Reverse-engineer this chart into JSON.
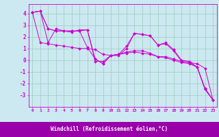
{
  "bg_color": "#cce8f0",
  "plot_bg_color": "#cce8f0",
  "line_color": "#cc00cc",
  "grid_color": "#99ccbb",
  "xlabel": "Windchill (Refroidissement éolien,°C)",
  "xlabel_color": "#cc00cc",
  "tick_color": "#cc00cc",
  "axis_color": "#cc00cc",
  "bottom_bar_color": "#9900aa",
  "ylim": [
    -4.0,
    4.8
  ],
  "xlim": [
    -0.5,
    23.5
  ],
  "yticks": [
    -3,
    -2,
    -1,
    0,
    1,
    2,
    3,
    4
  ],
  "xticks": [
    0,
    1,
    2,
    3,
    4,
    5,
    6,
    7,
    8,
    9,
    10,
    11,
    12,
    13,
    14,
    15,
    16,
    17,
    18,
    19,
    20,
    21,
    22,
    23
  ],
  "lines": [
    [
      4.1,
      4.2,
      1.5,
      2.7,
      2.5,
      2.4,
      2.6,
      2.6,
      -0.1,
      -0.1,
      0.4,
      0.4,
      1.0,
      2.3,
      2.2,
      2.1,
      1.3,
      1.5,
      0.9,
      0.0,
      -0.1,
      -0.6,
      -2.5,
      -3.4
    ],
    [
      4.1,
      1.5,
      1.4,
      1.3,
      1.2,
      1.1,
      1.0,
      1.0,
      0.9,
      0.5,
      0.4,
      0.5,
      0.7,
      0.8,
      0.8,
      0.6,
      0.3,
      0.3,
      0.1,
      -0.1,
      -0.2,
      -0.3,
      -0.7,
      -3.4
    ],
    [
      4.1,
      4.2,
      2.7,
      2.5,
      2.5,
      2.5,
      2.5,
      1.1,
      0.1,
      -0.3,
      0.4,
      0.5,
      0.6,
      0.7,
      0.6,
      0.5,
      0.3,
      0.2,
      0.0,
      -0.2,
      -0.3,
      -0.6,
      -2.4,
      -3.4
    ],
    [
      4.1,
      4.2,
      2.7,
      2.5,
      2.5,
      2.5,
      2.5,
      2.6,
      0.1,
      -0.3,
      0.4,
      0.5,
      1.2,
      2.3,
      2.2,
      2.1,
      1.3,
      1.4,
      0.8,
      -0.1,
      -0.2,
      -0.6,
      -2.5,
      -3.4
    ]
  ]
}
